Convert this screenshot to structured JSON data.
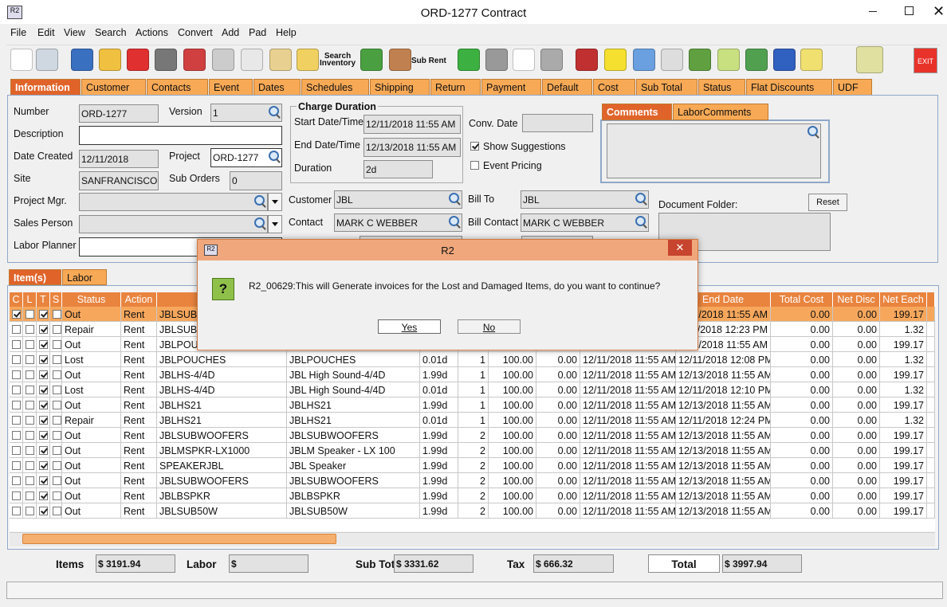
{
  "window": {
    "app_icon": "R2",
    "title": "ORD-1277 Contract"
  },
  "menu": [
    "File",
    "Edit",
    "View",
    "Search",
    "Actions",
    "Convert",
    "Add",
    "Pad",
    "Help"
  ],
  "toolbar": {
    "search_inventory": [
      "Search",
      "Inventory"
    ],
    "sub_rent": "Sub Rent",
    "exit": "EXIT"
  },
  "tabs": [
    "Information",
    "Customer",
    "Contacts",
    "Event",
    "Dates",
    "Schedules",
    "Shipping",
    "Return",
    "Payment",
    "Default",
    "Cost",
    "Sub Total",
    "Status",
    "Flat Discounts",
    "UDF"
  ],
  "form": {
    "number": {
      "label": "Number",
      "value": "ORD-1277"
    },
    "version": {
      "label": "Version",
      "value": "1"
    },
    "description": {
      "label": "Description"
    },
    "date_created": {
      "label": "Date Created",
      "value": "12/11/2018"
    },
    "project": {
      "label": "Project",
      "value": "ORD-1277"
    },
    "site": {
      "label": "Site",
      "value": "SANFRANCISCO"
    },
    "sub_orders": {
      "label": "Sub Orders",
      "value": "0"
    },
    "project_mgr": {
      "label": "Project Mgr."
    },
    "sales_person": {
      "label": "Sales Person"
    },
    "labor_planner": {
      "label": "Labor Planner"
    },
    "customer": {
      "label": "Customer",
      "value": "JBL"
    },
    "contact": {
      "label": "Contact",
      "value": "MARK C WEBBER"
    },
    "bill_to": {
      "label": "Bill To",
      "value": "JBL"
    },
    "bill_contact": {
      "label": "Bill Contact",
      "value": "MARK C WEBBER"
    },
    "conv_date": {
      "label": "Conv. Date"
    },
    "show_suggestions": {
      "label": "Show Suggestions",
      "checked": true
    },
    "event_pricing": {
      "label": "Event Pricing",
      "checked": false
    },
    "document_folder": {
      "label": "Document Folder:",
      "button": "Reset"
    }
  },
  "charge_duration": {
    "title": "Charge Duration",
    "start": {
      "label": "Start Date/Time",
      "value": "12/11/2018 11:55 AM"
    },
    "end": {
      "label": "End Date/Time",
      "value": "12/13/2018 11:55 AM"
    },
    "duration": {
      "label": "Duration",
      "value": "2d"
    }
  },
  "comments_tabs": [
    "Comments",
    "LaborComments"
  ],
  "item_tabs": [
    "Item(s)",
    "Labor"
  ],
  "table": {
    "columns": [
      "C",
      "L",
      "T",
      "S",
      "Status",
      "Action",
      null,
      null,
      null,
      null,
      null,
      null,
      null,
      "End Date",
      "Total Cost",
      "Net Disc",
      "Net Each"
    ],
    "rows": [
      {
        "checks": [
          true,
          false,
          true,
          false
        ],
        "cells": [
          "Out",
          "Rent",
          "JBLSUB",
          null,
          null,
          null,
          null,
          null,
          null,
          "3/2018 11:55 AM",
          "0.00",
          "0.00",
          "199.17"
        ]
      },
      {
        "checks": [
          false,
          false,
          true,
          false
        ],
        "cells": [
          "Repair",
          "Rent",
          "JBLSUB",
          null,
          null,
          null,
          null,
          null,
          null,
          "1/2018 12:23 PM",
          "0.00",
          "0.00",
          "1.32"
        ]
      },
      {
        "checks": [
          false,
          false,
          true,
          false
        ],
        "cells": [
          "Out",
          "Rent",
          "JBLPOU",
          null,
          null,
          null,
          null,
          null,
          null,
          "3/2018 11:55 AM",
          "0.00",
          "0.00",
          "199.17"
        ]
      },
      {
        "checks": [
          false,
          false,
          true,
          false
        ],
        "cells": [
          "Lost",
          "Rent",
          "JBLPOUCHES",
          "JBLPOUCHES",
          "0.01d",
          "1",
          "100.00",
          "0.00",
          "12/11/2018 11:55 AM",
          "12/11/2018 12:08 PM",
          "0.00",
          "0.00",
          "1.32"
        ]
      },
      {
        "checks": [
          false,
          false,
          true,
          false
        ],
        "cells": [
          "Out",
          "Rent",
          "JBLHS-4/4D",
          "JBL High Sound-4/4D",
          "1.99d",
          "1",
          "100.00",
          "0.00",
          "12/11/2018 11:55 AM",
          "12/13/2018 11:55 AM",
          "0.00",
          "0.00",
          "199.17"
        ]
      },
      {
        "checks": [
          false,
          false,
          true,
          false
        ],
        "cells": [
          "Lost",
          "Rent",
          "JBLHS-4/4D",
          "JBL High Sound-4/4D",
          "0.01d",
          "1",
          "100.00",
          "0.00",
          "12/11/2018 11:55 AM",
          "12/11/2018 12:10 PM",
          "0.00",
          "0.00",
          "1.32"
        ]
      },
      {
        "checks": [
          false,
          false,
          true,
          false
        ],
        "cells": [
          "Out",
          "Rent",
          "JBLHS21",
          "JBLHS21",
          "1.99d",
          "1",
          "100.00",
          "0.00",
          "12/11/2018 11:55 AM",
          "12/13/2018 11:55 AM",
          "0.00",
          "0.00",
          "199.17"
        ]
      },
      {
        "checks": [
          false,
          false,
          true,
          false
        ],
        "cells": [
          "Repair",
          "Rent",
          "JBLHS21",
          "JBLHS21",
          "0.01d",
          "1",
          "100.00",
          "0.00",
          "12/11/2018 11:55 AM",
          "12/11/2018 12:24 PM",
          "0.00",
          "0.00",
          "1.32"
        ]
      },
      {
        "checks": [
          false,
          false,
          true,
          false
        ],
        "cells": [
          "Out",
          "Rent",
          "JBLSUBWOOFERS",
          "JBLSUBWOOFERS",
          "1.99d",
          "2",
          "100.00",
          "0.00",
          "12/11/2018 11:55 AM",
          "12/13/2018 11:55 AM",
          "0.00",
          "0.00",
          "199.17"
        ]
      },
      {
        "checks": [
          false,
          false,
          true,
          false
        ],
        "cells": [
          "Out",
          "Rent",
          "JBLMSPKR-LX1000",
          "JBLM Speaker - LX 100",
          "1.99d",
          "2",
          "100.00",
          "0.00",
          "12/11/2018 11:55 AM",
          "12/13/2018 11:55 AM",
          "0.00",
          "0.00",
          "199.17"
        ]
      },
      {
        "checks": [
          false,
          false,
          true,
          false
        ],
        "cells": [
          "Out",
          "Rent",
          "SPEAKERJBL",
          "JBL Speaker",
          "1.99d",
          "2",
          "100.00",
          "0.00",
          "12/11/2018 11:55 AM",
          "12/13/2018 11:55 AM",
          "0.00",
          "0.00",
          "199.17"
        ]
      },
      {
        "checks": [
          false,
          false,
          true,
          false
        ],
        "cells": [
          "Out",
          "Rent",
          "JBLSUBWOOFERS",
          "JBLSUBWOOFERS",
          "1.99d",
          "2",
          "100.00",
          "0.00",
          "12/11/2018 11:55 AM",
          "12/13/2018 11:55 AM",
          "0.00",
          "0.00",
          "199.17"
        ]
      },
      {
        "checks": [
          false,
          false,
          true,
          false
        ],
        "cells": [
          "Out",
          "Rent",
          "JBLBSPKR",
          "JBLBSPKR",
          "1.99d",
          "2",
          "100.00",
          "0.00",
          "12/11/2018 11:55 AM",
          "12/13/2018 11:55 AM",
          "0.00",
          "0.00",
          "199.17"
        ]
      },
      {
        "checks": [
          false,
          false,
          true,
          false
        ],
        "cells": [
          "Out",
          "Rent",
          "JBLSUB50W",
          "JBLSUB50W",
          "1.99d",
          "2",
          "100.00",
          "0.00",
          "12/11/2018 11:55 AM",
          "12/13/2018 11:55 AM",
          "0.00",
          "0.00",
          "199.17"
        ]
      }
    ]
  },
  "footer": {
    "items": {
      "label": "Items",
      "value": "$ 3191.94"
    },
    "labor": {
      "label": "Labor",
      "value": "$"
    },
    "sub_total": {
      "label": "Sub Total",
      "value": "$ 3331.62"
    },
    "tax": {
      "label": "Tax",
      "value": "$ 666.32"
    },
    "total": {
      "label": "Total",
      "value": "$ 3997.94"
    }
  },
  "dialog": {
    "icon": "R2",
    "title": "R2",
    "symbol": "?",
    "message": "R2_00629:This will Generate invoices for the Lost and Damaged Items, do you want to continue?",
    "yes": "Yes",
    "no": "No"
  }
}
